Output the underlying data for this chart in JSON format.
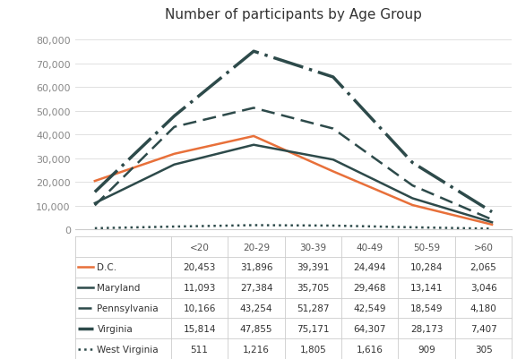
{
  "title": "Number of participants by Age Group",
  "age_groups": [
    "<20",
    "20-29",
    "30-39",
    "40-49",
    "50-59",
    ">60"
  ],
  "series": [
    {
      "label": "D.C.",
      "values": [
        20453,
        31896,
        39391,
        24494,
        10284,
        2065
      ],
      "color": "#E8703A",
      "linestyle": "-",
      "linewidth": 1.8,
      "dashes": null
    },
    {
      "label": "Maryland",
      "values": [
        11093,
        27384,
        35705,
        29468,
        13141,
        3046
      ],
      "color": "#2d4a4a",
      "linestyle": "-",
      "linewidth": 1.8,
      "dashes": null
    },
    {
      "label": "Pennsylvania",
      "values": [
        10166,
        43254,
        51287,
        42549,
        18549,
        4180
      ],
      "color": "#2d4a4a",
      "linestyle": "--",
      "linewidth": 1.8,
      "dashes": [
        6,
        3
      ]
    },
    {
      "label": "Virginia",
      "values": [
        15814,
        47855,
        75171,
        64307,
        28173,
        7407
      ],
      "color": "#2d4a4a",
      "linestyle": "--",
      "linewidth": 2.5,
      "dashes": [
        10,
        2,
        1,
        2
      ]
    },
    {
      "label": "West Virginia",
      "values": [
        511,
        1216,
        1805,
        1616,
        909,
        305
      ],
      "color": "#2d4a4a",
      "linestyle": ":",
      "linewidth": 1.8,
      "dashes": null
    }
  ],
  "ylim": [
    0,
    85000
  ],
  "yticks": [
    0,
    10000,
    20000,
    30000,
    40000,
    50000,
    60000,
    70000,
    80000
  ],
  "table_data": [
    [
      "D.C.",
      "20,453",
      "31,896",
      "39,391",
      "24,494",
      "10,284",
      "2,065"
    ],
    [
      "Maryland",
      "11,093",
      "27,384",
      "35,705",
      "29,468",
      "13,141",
      "3,046"
    ],
    [
      "Pennsylvania",
      "10,166",
      "43,254",
      "51,287",
      "42,549",
      "18,549",
      "4,180"
    ],
    [
      "Virginia",
      "15,814",
      "47,855",
      "75,171",
      "64,307",
      "28,173",
      "7,407"
    ],
    [
      "West Virginia",
      "511",
      "1,216",
      "1,805",
      "1,616",
      "909",
      "305"
    ]
  ],
  "background_color": "#ffffff",
  "grid_color": "#e0e0e0",
  "legend_styles": [
    {
      "color": "#E8703A",
      "linestyle": "-",
      "dashes": null,
      "linewidth": 1.8
    },
    {
      "color": "#2d4a4a",
      "linestyle": "-",
      "dashes": null,
      "linewidth": 1.8
    },
    {
      "color": "#2d4a4a",
      "linestyle": "--",
      "dashes": [
        6,
        3
      ],
      "linewidth": 1.8
    },
    {
      "color": "#2d4a4a",
      "linestyle": "--",
      "dashes": [
        10,
        2,
        1,
        2
      ],
      "linewidth": 2.5
    },
    {
      "color": "#2d4a4a",
      "linestyle": ":",
      "dashes": null,
      "linewidth": 1.8
    }
  ]
}
